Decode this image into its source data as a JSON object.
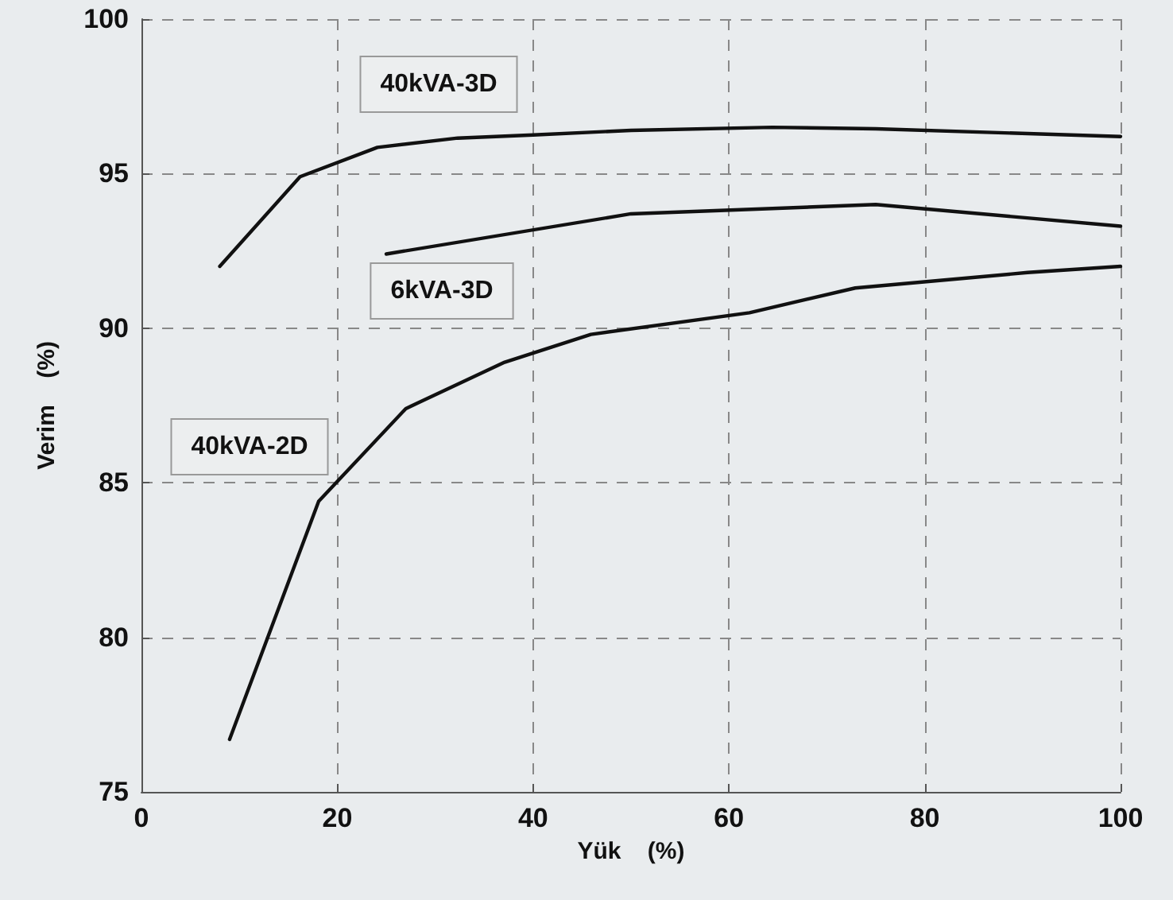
{
  "chart_data": {
    "type": "line",
    "xlabel": "Yük    (%)",
    "ylabel": "Verim    (%)",
    "xlim": [
      0,
      100
    ],
    "xticks": [
      0,
      20,
      40,
      60,
      80,
      100
    ],
    "ylim": [
      75,
      100
    ],
    "yticks": [
      75,
      80,
      85,
      90,
      95,
      100
    ],
    "grid": true,
    "marker": "none",
    "line_style": "solid",
    "series": [
      {
        "name": "40kVA-3D",
        "color": "#111111",
        "x": [
          8,
          16.2,
          24.1,
          32.3,
          40,
          50,
          64.4,
          75,
          100
        ],
        "values": [
          92.0,
          94.9,
          95.85,
          96.15,
          96.25,
          96.4,
          96.5,
          96.45,
          96.2
        ]
      },
      {
        "name": "6kVA-3D",
        "color": "#111111",
        "x": [
          25,
          50,
          75,
          100
        ],
        "values": [
          92.4,
          93.7,
          94.0,
          93.3
        ]
      },
      {
        "name": "40kVA-2D",
        "color": "#111111",
        "x": [
          9,
          18.1,
          27,
          37.1,
          45.9,
          62.1,
          72.9,
          90.5,
          100
        ],
        "values": [
          76.7,
          84.4,
          87.4,
          88.9,
          89.8,
          90.5,
          91.3,
          91.8,
          92.0
        ]
      }
    ]
  }
}
